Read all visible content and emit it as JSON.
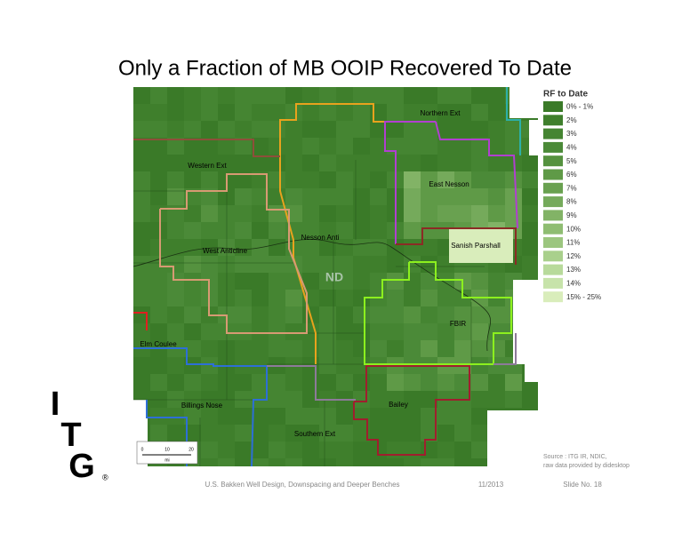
{
  "title": "Only a Fraction of MB OOIP Recovered To Date",
  "legend": {
    "title": "RF to Date",
    "items": [
      {
        "label": "0% - 1%",
        "color": "#3a7a28"
      },
      {
        "label": "2%",
        "color": "#3f7f2c"
      },
      {
        "label": "3%",
        "color": "#458532"
      },
      {
        "label": "4%",
        "color": "#4b8a38"
      },
      {
        "label": "5%",
        "color": "#55923f"
      },
      {
        "label": "6%",
        "color": "#5f9a47"
      },
      {
        "label": "7%",
        "color": "#69a150"
      },
      {
        "label": "8%",
        "color": "#75aa5b"
      },
      {
        "label": "9%",
        "color": "#82b366"
      },
      {
        "label": "10%",
        "color": "#8fbd72"
      },
      {
        "label": "11%",
        "color": "#9cc67f"
      },
      {
        "label": "12%",
        "color": "#a9d08c"
      },
      {
        "label": "13%",
        "color": "#b8da9b"
      },
      {
        "label": "14%",
        "color": "#c7e3aa"
      },
      {
        "label": "15% - 25%",
        "color": "#d9edbb"
      }
    ]
  },
  "map": {
    "labels": [
      "Northern Ext",
      "Western Ext",
      "East Nesson",
      "Nesson Anti",
      "West Anticline",
      "Sanish Parshall",
      "ND",
      "FBIR",
      "Elm Coulee",
      "Billings Nose",
      "Bailey",
      "Southern Ext"
    ],
    "scale": [
      "0",
      "10",
      "20",
      "mi"
    ]
  },
  "source": [
    "Source : ITG IR, NDIC,",
    "raw data provided by didesktop"
  ],
  "logo": {
    "letters": [
      "I",
      "T",
      "G"
    ],
    "mark": "®"
  },
  "footer": {
    "text": "U.S. Bakken Well Design, Downspacing and Deeper Benches",
    "date": "11/2013",
    "slide": "Slide No. 18"
  }
}
